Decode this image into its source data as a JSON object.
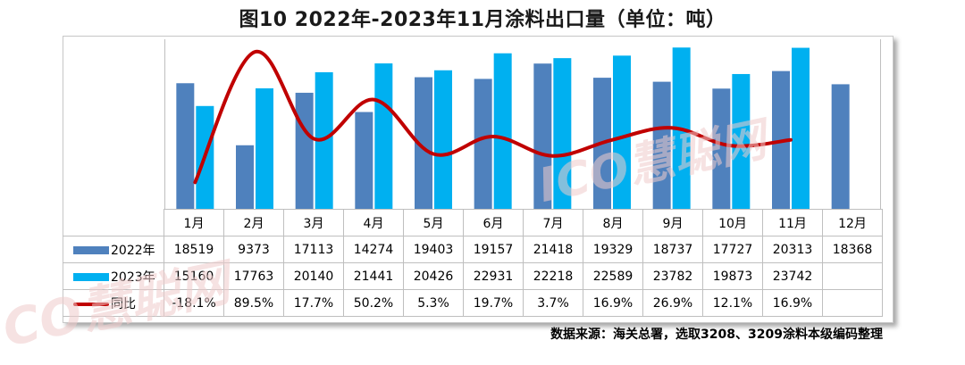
{
  "chart_data": {
    "type": "bar",
    "title": "图10 2022年-2023年11月涂料出口量（单位：吨）",
    "categories": [
      "1月",
      "2月",
      "3月",
      "4月",
      "5月",
      "6月",
      "7月",
      "8月",
      "9月",
      "10月",
      "11月",
      "12月"
    ],
    "series": [
      {
        "name": "2022年",
        "kind": "bar",
        "color": "#4f81bd",
        "values": [
          18519,
          9373,
          17113,
          14274,
          19403,
          19157,
          21418,
          19329,
          18737,
          17727,
          20313,
          18368
        ]
      },
      {
        "name": "2023年",
        "kind": "bar",
        "color": "#00b0f0",
        "values": [
          15160,
          17763,
          20140,
          21441,
          20426,
          22931,
          22218,
          22589,
          23782,
          19873,
          23742,
          null
        ]
      },
      {
        "name": "同比",
        "kind": "line",
        "color": "#c00000",
        "values": [
          -18.1,
          89.5,
          17.7,
          50.2,
          5.3,
          19.7,
          3.7,
          16.9,
          26.9,
          12.1,
          16.9,
          null
        ],
        "labels": [
          "-18.1%",
          "89.5%",
          "17.7%",
          "50.2%",
          "5.3%",
          "19.7%",
          "3.7%",
          "16.9%",
          "26.9%",
          "12.1%",
          "16.9%",
          ""
        ]
      }
    ],
    "ylim_bar": [
      0,
      25000
    ],
    "ylim_line": [
      -40,
      100
    ],
    "grid": false,
    "legend": "in-table"
  },
  "source_note": "数据来源：海关总署，选取3208、3209涂料本级编码整理",
  "watermark_text": "ICO慧聪网"
}
